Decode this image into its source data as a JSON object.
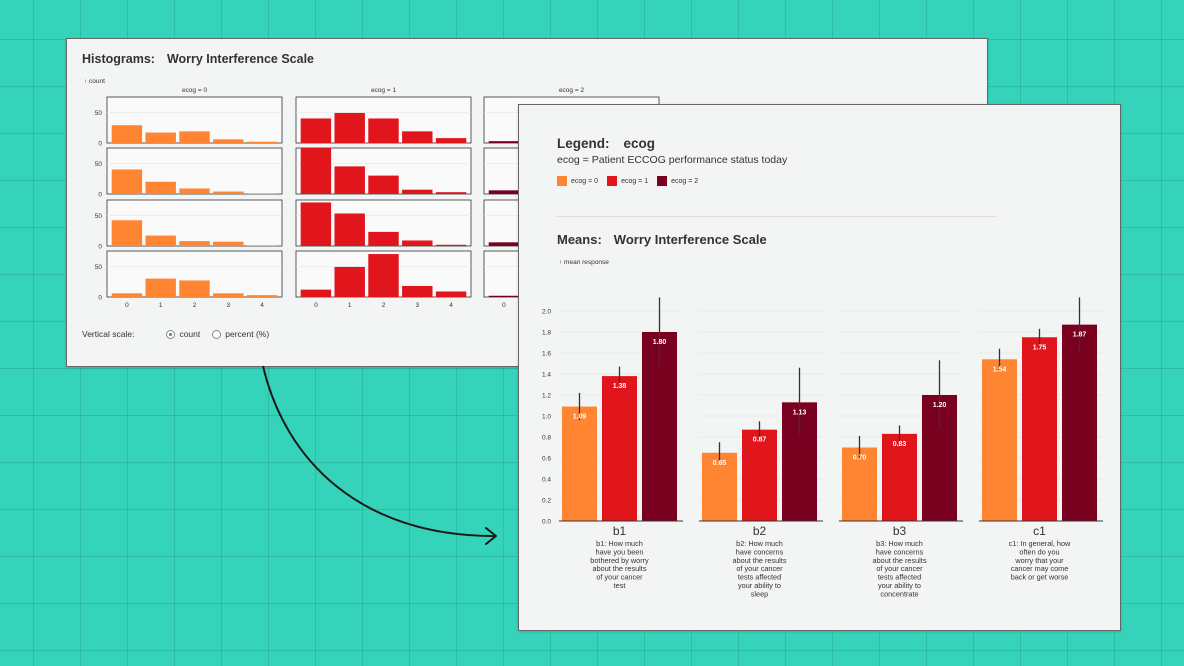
{
  "histograms": {
    "title_label": "Histograms:",
    "title_value": "Worry Interference Scale",
    "y_axis_label": "↑ count",
    "vertical_scale": {
      "label": "Vertical scale:",
      "options": [
        {
          "label": "count",
          "selected": true
        },
        {
          "label": "percent (%)",
          "selected": false
        }
      ]
    }
  },
  "legend": {
    "title_label": "Legend:",
    "title_value": "ecog",
    "description": "ecog = Patient ECCOG performance status today",
    "items": [
      {
        "label": "ecog = 0",
        "color": "#ff8533"
      },
      {
        "label": "ecog = 1",
        "color": "#e0161c"
      },
      {
        "label": "ecog = 2",
        "color": "#7a0020"
      }
    ]
  },
  "means": {
    "title_label": "Means:",
    "title_value": "Worry Interference Scale",
    "y_axis_label": "↑ mean response"
  },
  "chart_data": [
    {
      "type": "bar",
      "title": "Histograms: Worry Interference Scale",
      "ylabel": "count",
      "facets": [
        "ecog = 0",
        "ecog = 1",
        "ecog = 2"
      ],
      "categories": [
        0,
        1,
        2,
        3,
        4
      ],
      "yticks": [
        0,
        50
      ],
      "ylim": [
        0,
        75
      ],
      "rows": [
        {
          "item": "b1",
          "values": [
            [
              29,
              17,
              19,
              6,
              2
            ],
            [
              40,
              49,
              40,
              19,
              8
            ],
            [
              3,
              1,
              1,
              0,
              0
            ]
          ]
        },
        {
          "item": "b2",
          "values": [
            [
              40,
              20,
              9,
              4,
              1
            ],
            [
              77,
              45,
              30,
              7,
              3
            ],
            [
              6,
              3,
              2,
              1,
              0
            ]
          ]
        },
        {
          "item": "b3",
          "values": [
            [
              42,
              17,
              8,
              7,
              1
            ],
            [
              71,
              53,
              23,
              9,
              2
            ],
            [
              6,
              3,
              2,
              1,
              0
            ]
          ]
        },
        {
          "item": "c1",
          "values": [
            [
              6,
              30,
              27,
              6,
              3
            ],
            [
              12,
              49,
              70,
              18,
              9
            ],
            [
              2,
              3,
              3,
              1,
              0
            ]
          ]
        }
      ],
      "x_tick_labels": [
        "0",
        "1",
        "2",
        "3",
        "4"
      ]
    },
    {
      "type": "bar",
      "title": "Means: Worry Interference Scale",
      "ylabel": "mean response",
      "ylim": [
        0,
        2.1
      ],
      "yticks": [
        "0.0",
        "0.2",
        "0.4",
        "0.6",
        "0.8",
        "1.0",
        "1.2",
        "1.4",
        "1.6",
        "1.8",
        "2.0"
      ],
      "series_names": [
        "ecog = 0",
        "ecog = 1",
        "ecog = 2"
      ],
      "groups": [
        {
          "code": "b1",
          "description": "b1: How much have you been bothered by worry about the results of your cancer test",
          "desc_lines": [
            "b1: How much",
            "have you been",
            "bothered by worry",
            "about the results",
            "of your cancer",
            "test"
          ],
          "values": [
            1.09,
            1.38,
            1.8
          ],
          "labels": [
            "1.09",
            "1.38",
            "1.80"
          ],
          "ci": [
            [
              0.96,
              1.22
            ],
            [
              1.3,
              1.47
            ],
            [
              1.47,
              2.13
            ]
          ]
        },
        {
          "code": "b2",
          "description": "b2: How much have concerns about the results of your cancer tests affected your ability to sleep",
          "desc_lines": [
            "b2: How much",
            "have concerns",
            "about the results",
            "of your cancer",
            "tests affected",
            "your ability to",
            "sleep"
          ],
          "values": [
            0.65,
            0.87,
            1.13
          ],
          "labels": [
            "0.65",
            "0.87",
            "1.13"
          ],
          "ci": [
            [
              0.55,
              0.75
            ],
            [
              0.8,
              0.95
            ],
            [
              0.82,
              1.46
            ]
          ]
        },
        {
          "code": "b3",
          "description": "b3: How much have concerns about the results of your cancer tests affected your ability to concentrate",
          "desc_lines": [
            "b3: How much",
            "have concerns",
            "about the results",
            "of your cancer",
            "tests affected",
            "your ability to",
            "concentrate"
          ],
          "values": [
            0.7,
            0.83,
            1.2
          ],
          "labels": [
            "0.70",
            "0.83",
            "1.20"
          ],
          "ci": [
            [
              0.6,
              0.81
            ],
            [
              0.76,
              0.91
            ],
            [
              0.87,
              1.53
            ]
          ]
        },
        {
          "code": "c1",
          "description": "c1: In general, how often do you worry that your cancer may come back or get worse",
          "desc_lines": [
            "c1: In general, how",
            "often do you",
            "worry that your",
            "cancer may come",
            "back or get worse"
          ],
          "values": [
            1.54,
            1.75,
            1.87
          ],
          "labels": [
            "1.54",
            "1.75",
            "1.87"
          ],
          "ci": [
            [
              1.44,
              1.64
            ],
            [
              1.68,
              1.83
            ],
            [
              1.61,
              2.13
            ]
          ]
        }
      ]
    }
  ]
}
